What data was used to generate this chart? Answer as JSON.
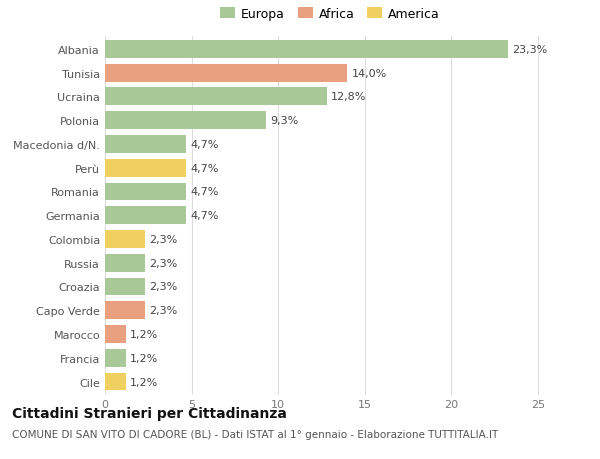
{
  "countries": [
    "Albania",
    "Tunisia",
    "Ucraina",
    "Polonia",
    "Macedonia d/N.",
    "Perù",
    "Romania",
    "Germania",
    "Colombia",
    "Russia",
    "Croazia",
    "Capo Verde",
    "Marocco",
    "Francia",
    "Cile"
  ],
  "values": [
    23.3,
    14.0,
    12.8,
    9.3,
    4.7,
    4.7,
    4.7,
    4.7,
    2.3,
    2.3,
    2.3,
    2.3,
    1.2,
    1.2,
    1.2
  ],
  "labels": [
    "23,3%",
    "14,0%",
    "12,8%",
    "9,3%",
    "4,7%",
    "4,7%",
    "4,7%",
    "4,7%",
    "2,3%",
    "2,3%",
    "2,3%",
    "2,3%",
    "1,2%",
    "1,2%",
    "1,2%"
  ],
  "continents": [
    "Europa",
    "Africa",
    "Europa",
    "Europa",
    "Europa",
    "America",
    "Europa",
    "Europa",
    "America",
    "Europa",
    "Europa",
    "Africa",
    "Africa",
    "Europa",
    "America"
  ],
  "colors": {
    "Europa": "#a8c897",
    "Africa": "#e8a080",
    "America": "#f0d060"
  },
  "title": "Cittadini Stranieri per Cittadinanza",
  "subtitle": "COMUNE DI SAN VITO DI CADORE (BL) - Dati ISTAT al 1° gennaio - Elaborazione TUTTITALIA.IT",
  "xlim": [
    0,
    26
  ],
  "xticks": [
    0,
    5,
    10,
    15,
    20,
    25
  ],
  "background_color": "#ffffff",
  "grid_color": "#dddddd",
  "bar_height": 0.75,
  "title_fontsize": 10,
  "subtitle_fontsize": 7.5,
  "label_fontsize": 8,
  "tick_fontsize": 8,
  "legend_fontsize": 9
}
